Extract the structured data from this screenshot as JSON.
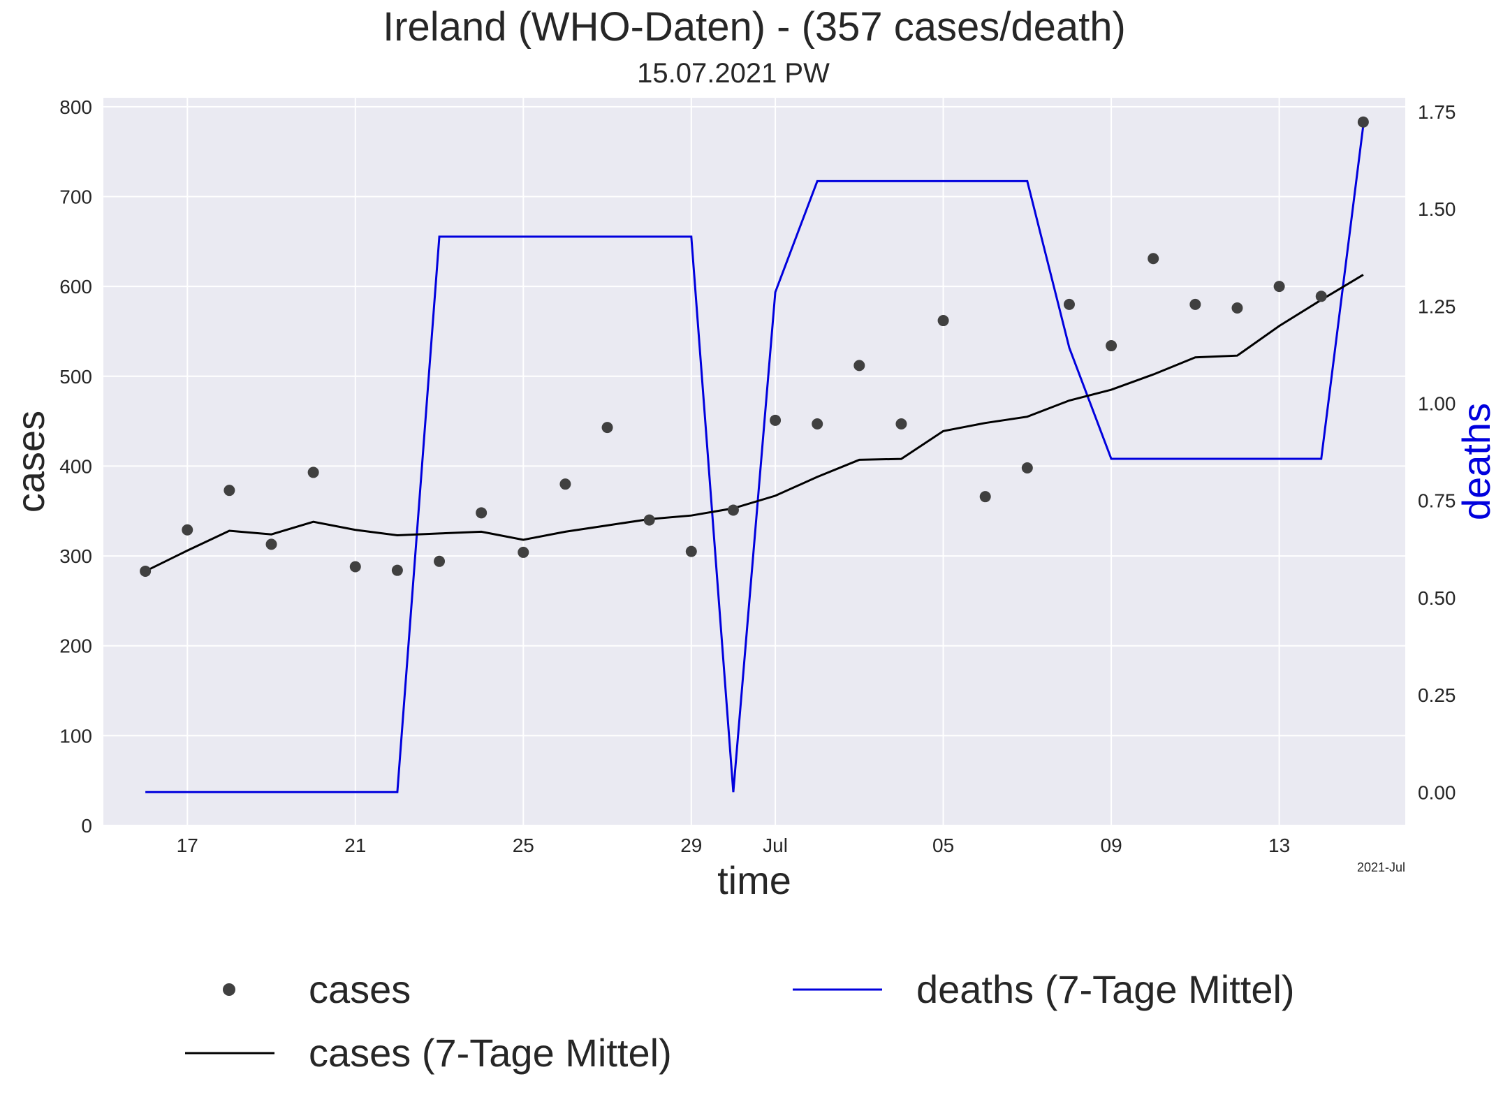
{
  "chart_data": {
    "type": "line",
    "title": "Ireland (WHO-Daten) - (357 cases/death)",
    "subtitle": "15.07.2021 PW",
    "xlabel": "time",
    "ylabel": "cases",
    "ylabel_right": "deaths",
    "x_offset_label": "2021-Jul",
    "x_ticks": [
      {
        "date": "2021-06-17",
        "label": "17"
      },
      {
        "date": "2021-06-21",
        "label": "21"
      },
      {
        "date": "2021-06-25",
        "label": "25"
      },
      {
        "date": "2021-06-29",
        "label": "29"
      },
      {
        "date": "2021-07-01",
        "label": "Jul"
      },
      {
        "date": "2021-07-05",
        "label": "05"
      },
      {
        "date": "2021-07-09",
        "label": "09"
      },
      {
        "date": "2021-07-13",
        "label": "13"
      }
    ],
    "xlim": [
      "2021-06-15",
      "2021-07-16"
    ],
    "ylim": [
      0,
      810
    ],
    "y_ticks": [
      "0",
      "100",
      "200",
      "300",
      "400",
      "500",
      "600",
      "700",
      "800"
    ],
    "ylim_right": [
      -0.0857,
      1.7857
    ],
    "y_ticks_right": [
      "0.00",
      "0.25",
      "0.50",
      "0.75",
      "1.00",
      "1.25",
      "1.50",
      "1.75"
    ],
    "grid": true,
    "legend_position": "below",
    "dates": [
      "2021-06-16",
      "2021-06-17",
      "2021-06-18",
      "2021-06-19",
      "2021-06-20",
      "2021-06-21",
      "2021-06-22",
      "2021-06-23",
      "2021-06-24",
      "2021-06-25",
      "2021-06-26",
      "2021-06-27",
      "2021-06-28",
      "2021-06-29",
      "2021-06-30",
      "2021-07-01",
      "2021-07-02",
      "2021-07-03",
      "2021-07-04",
      "2021-07-05",
      "2021-07-06",
      "2021-07-07",
      "2021-07-08",
      "2021-07-09",
      "2021-07-10",
      "2021-07-11",
      "2021-07-12",
      "2021-07-13",
      "2021-07-14",
      "2021-07-15"
    ],
    "series": [
      {
        "name": "cases",
        "kind": "scatter",
        "axis": "left",
        "color": "#404040",
        "values": [
          283,
          329,
          373,
          313,
          393,
          288,
          284,
          294,
          348,
          304,
          380,
          443,
          340,
          305,
          351,
          451,
          447,
          512,
          447,
          562,
          366,
          398,
          580,
          534,
          631,
          580,
          576,
          600,
          589,
          783
        ]
      },
      {
        "name": "cases (7-Tage Mittel)",
        "kind": "line",
        "axis": "left",
        "color": "#000000",
        "values": [
          283,
          306,
          328,
          324,
          338,
          329,
          323,
          325,
          327,
          318,
          327,
          334,
          341,
          345,
          353,
          367,
          388,
          407,
          408,
          439,
          448,
          455,
          473,
          485,
          502,
          521,
          523,
          556,
          585,
          613
        ]
      },
      {
        "name": "deaths (7-Tage Mittel)",
        "kind": "line",
        "axis": "right",
        "color": "#0000dd",
        "values": [
          0,
          0,
          0,
          0,
          0,
          0,
          0,
          1.4286,
          1.4286,
          1.4286,
          1.4286,
          1.4286,
          1.4286,
          1.4286,
          0,
          1.2857,
          1.5714,
          1.5714,
          1.5714,
          1.5714,
          1.5714,
          1.5714,
          1.1429,
          0.8571,
          0.8571,
          0.8571,
          0.8571,
          0.8571,
          0.8571,
          1.7143
        ]
      }
    ],
    "colors": {
      "background": "#ffffff",
      "plot_background": "#eaeaf2",
      "grid": "#ffffff",
      "text": "#262626",
      "right_axis_label": "#0000dd"
    }
  }
}
